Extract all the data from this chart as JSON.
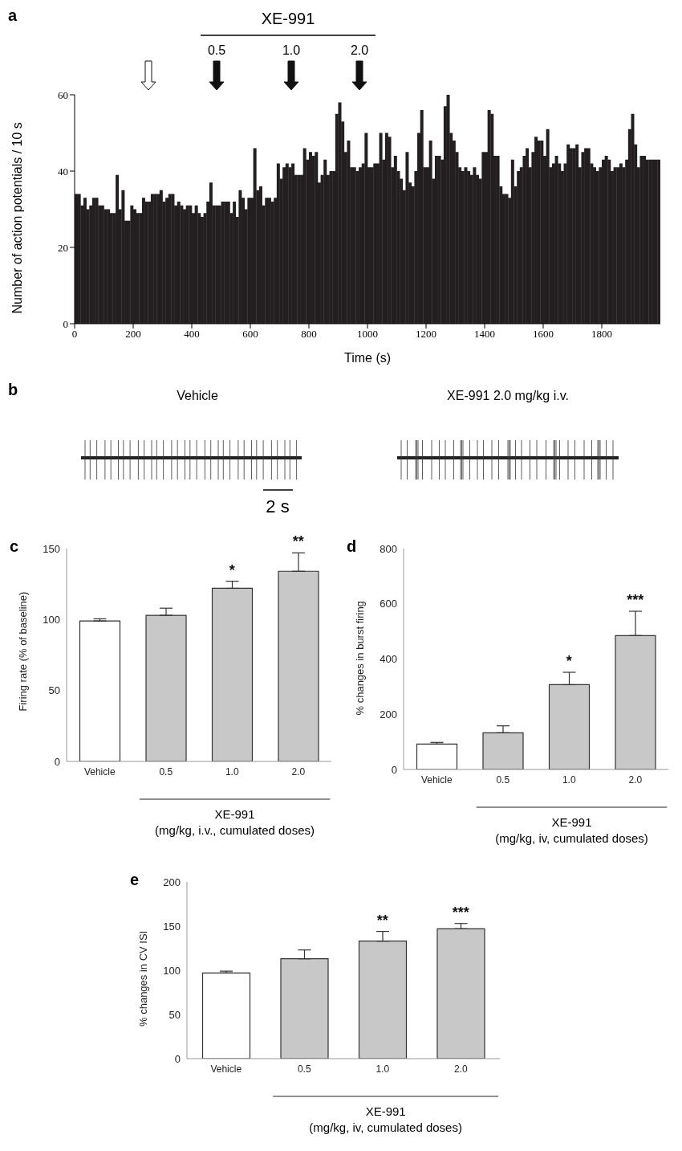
{
  "chart_data": [
    {
      "type": "histogram",
      "xlabel": "Time (s)",
      "ylabel": "Number of action potentials / 10 s",
      "color": "#231f20",
      "bins": [
        0,
        10,
        20,
        30,
        40,
        50,
        60,
        70,
        80,
        90,
        100,
        110,
        120,
        130,
        140,
        150,
        160,
        170,
        180,
        190,
        200,
        210,
        220,
        230,
        240,
        250,
        260,
        270,
        280,
        290,
        300,
        310,
        320,
        330,
        340,
        350,
        360,
        370,
        380,
        390,
        400,
        410,
        420,
        430,
        440,
        450,
        460,
        470,
        480,
        490,
        500,
        510,
        520,
        530,
        540,
        550,
        560,
        570,
        580,
        590,
        600,
        610,
        620,
        630,
        640,
        650,
        660,
        670,
        680,
        690,
        700,
        710,
        720,
        730,
        740,
        750,
        760,
        770,
        780,
        790,
        800,
        810,
        820,
        830,
        840,
        850,
        860,
        870,
        880,
        890,
        900,
        910,
        920,
        930,
        940,
        950,
        960,
        970,
        980,
        990,
        1000,
        1010,
        1020,
        1030,
        1040,
        1050,
        1060,
        1070,
        1080,
        1090,
        1100,
        1110,
        1120,
        1130,
        1140,
        1150,
        1160,
        1170,
        1180,
        1190,
        1200,
        1210,
        1220,
        1230,
        1240,
        1250,
        1260,
        1270,
        1280,
        1290,
        1300,
        1310,
        1320,
        1330,
        1340,
        1350,
        1360,
        1370,
        1380,
        1390,
        1400,
        1410,
        1420,
        1430,
        1440,
        1450,
        1460,
        1470,
        1480,
        1490,
        1500,
        1510,
        1520,
        1530,
        1540,
        1550,
        1560,
        1570,
        1580,
        1590,
        1600,
        1610,
        1620,
        1630,
        1640,
        1650,
        1660,
        1670,
        1680,
        1690,
        1700,
        1710,
        1720,
        1730,
        1740,
        1750,
        1760,
        1770,
        1780,
        1790,
        1800,
        1810,
        1820,
        1830,
        1840,
        1850,
        1860,
        1870,
        1880,
        1890,
        1900,
        1910,
        1920,
        1930,
        1940,
        1950,
        1960,
        1970,
        1980,
        1990,
        2000
      ],
      "values": [
        34,
        34,
        31,
        33,
        30,
        31,
        33,
        33,
        31,
        31,
        30,
        30,
        29,
        29,
        39,
        30,
        35,
        27,
        27,
        31,
        30,
        29,
        29,
        33,
        32,
        32,
        34,
        34,
        34,
        35,
        32,
        33,
        34,
        34,
        31,
        32,
        31,
        30,
        31,
        31,
        29,
        31,
        29,
        28,
        29,
        32,
        37,
        31,
        31,
        31,
        32,
        32,
        32,
        29,
        32,
        28,
        35,
        33,
        30,
        33,
        33,
        46,
        35,
        36,
        31,
        33,
        33,
        32,
        33,
        42,
        38,
        41,
        42,
        41,
        42,
        39,
        39,
        39,
        46,
        43,
        45,
        44,
        45,
        37,
        39,
        43,
        39,
        40,
        40,
        55,
        58,
        53,
        45,
        48,
        41,
        41,
        40,
        41,
        42,
        50,
        41,
        41,
        42,
        42,
        50,
        43,
        50,
        49,
        41,
        44,
        40,
        38,
        35,
        45,
        37,
        36,
        40,
        50,
        56,
        41,
        41,
        48,
        38,
        44,
        44,
        43,
        57,
        60,
        50,
        48,
        45,
        41,
        40,
        41,
        40,
        39,
        41,
        39,
        38,
        45,
        45,
        56,
        55,
        44,
        44,
        36,
        34,
        34,
        33,
        43,
        36,
        40,
        41,
        44,
        46,
        41,
        45,
        49,
        48,
        48,
        44,
        51,
        41,
        42,
        44,
        42,
        40,
        42,
        47,
        46,
        46,
        47,
        41,
        45,
        46,
        46,
        42,
        41,
        40,
        41,
        43,
        44,
        43,
        40,
        41,
        41,
        42,
        41,
        43,
        51,
        55,
        47,
        41,
        44,
        44,
        43,
        43,
        43,
        43,
        43
      ],
      "xlim": [
        0,
        2000
      ],
      "xticks": [
        0,
        200,
        400,
        600,
        800,
        1000,
        1200,
        1400,
        1600,
        1800
      ],
      "ylim": [
        0,
        60
      ],
      "yticks": [
        0,
        20,
        40,
        60
      ],
      "annotations": [
        "a",
        "XE-991",
        "0.5",
        "1.0",
        "2.0"
      ]
    },
    {
      "type": "other",
      "annotations": [
        "b",
        "Vehicle",
        "XE-991 2.0 mg/kg i.v.",
        "2 s"
      ]
    },
    {
      "type": "bar",
      "ylabel": "Firing rate (% of baseline)",
      "xlabel": "XE-991\n(mg/kg, i.v., cumulated doses)",
      "categories": [
        "Vehicle",
        "0.5",
        "1.0",
        "2.0"
      ],
      "values": [
        99,
        103,
        122,
        134
      ],
      "errors": [
        [
          99,
          100.5
        ],
        [
          103,
          108
        ],
        [
          122,
          127
        ],
        [
          134,
          147
        ]
      ],
      "colors": [
        "#ffffff",
        "#c8c8c8",
        "#c8c8c8",
        "#c8c8c8"
      ],
      "ylim": [
        0,
        150
      ],
      "yticks": [
        0,
        50,
        100,
        150
      ],
      "annotations": [
        "c",
        {
          "text": "*",
          "x": "1.0",
          "y": 127
        },
        {
          "text": "**",
          "x": "2.0",
          "y": 147
        }
      ]
    },
    {
      "type": "bar",
      "ylabel": "% changes in burst firing",
      "xlabel": "XE-991\n(mg/kg, iv, cumulated doses)",
      "categories": [
        "Vehicle",
        "0.5",
        "1.0",
        "2.0"
      ],
      "values": [
        92,
        133,
        307,
        485
      ],
      "errors": [
        [
          92,
          98
        ],
        [
          133,
          158
        ],
        [
          307,
          352
        ],
        [
          485,
          573
        ]
      ],
      "colors": [
        "#ffffff",
        "#c8c8c8",
        "#c8c8c8",
        "#c8c8c8"
      ],
      "ylim": [
        0,
        800
      ],
      "yticks": [
        0,
        200,
        400,
        600,
        800
      ],
      "annotations": [
        "d",
        {
          "text": "*",
          "x": "1.0",
          "y": 352
        },
        {
          "text": "***",
          "x": "2.0",
          "y": 573
        }
      ]
    },
    {
      "type": "bar",
      "ylabel": "% changes in CV ISI",
      "xlabel": "XE-991\n(mg/kg, iv, cumulated doses)",
      "categories": [
        "Vehicle",
        "0.5",
        "1.0",
        "2.0"
      ],
      "values": [
        97,
        113,
        133,
        147
      ],
      "errors": [
        [
          97,
          99
        ],
        [
          113,
          123
        ],
        [
          133,
          144
        ],
        [
          147,
          153
        ]
      ],
      "colors": [
        "#ffffff",
        "#c8c8c8",
        "#c8c8c8",
        "#c8c8c8"
      ],
      "ylim": [
        0,
        200
      ],
      "yticks": [
        0,
        50,
        100,
        150,
        200
      ],
      "annotations": [
        "e",
        {
          "text": "**",
          "x": "1.0",
          "y": 144
        },
        {
          "text": "***",
          "x": "2.0",
          "y": 153
        }
      ]
    }
  ]
}
